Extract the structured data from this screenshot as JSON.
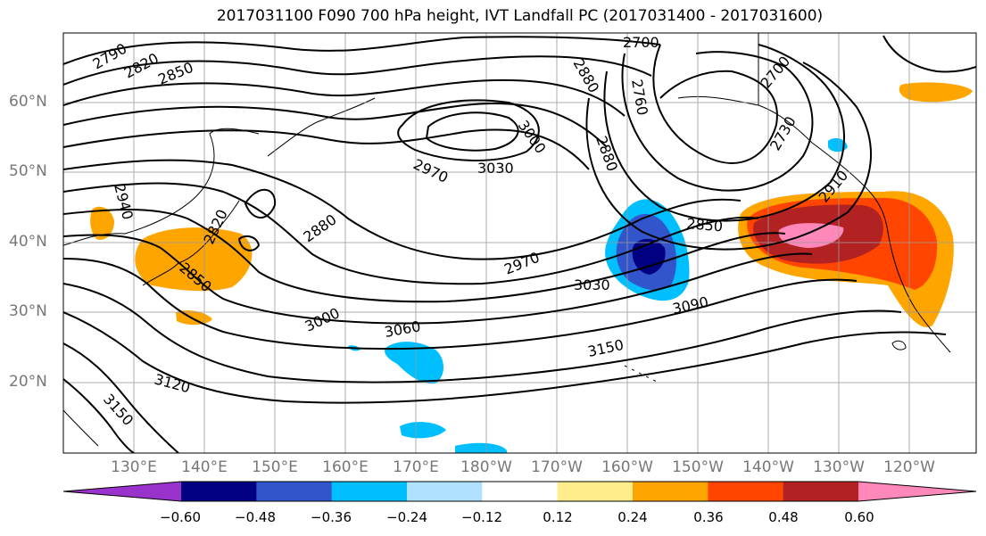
{
  "title": "2017031100 F090 700 hPa height, IVT Landfall PC (2017031400 - 2017031600)",
  "lat_labels": [
    "60°N",
    "50°N",
    "40°N",
    "30°N",
    "20°N"
  ],
  "lon_labels": [
    "130°E",
    "140°E",
    "150°E",
    "160°E",
    "170°E",
    "180°W",
    "170°W",
    "160°W",
    "150°W",
    "140°W",
    "130°W",
    "120°W"
  ],
  "contour_labels": [
    "2790",
    "2820",
    "2850",
    "2700",
    "2880",
    "2970",
    "3000",
    "3030",
    "2760",
    "2880",
    "2700",
    "2730",
    "2910",
    "2940",
    "2820",
    "2850",
    "2880",
    "2970",
    "3030",
    "3090",
    "3000",
    "3060",
    "3150",
    "3120",
    "3150",
    "2850"
  ],
  "colorbar": {
    "ticks": [
      "−0.60",
      "−0.48",
      "−0.36",
      "−0.24",
      "−0.12",
      "0.12",
      "0.24",
      "0.36",
      "0.48",
      "0.60"
    ],
    "colors": [
      "#9933cc",
      "#000080",
      "#3355cc",
      "#00bfff",
      "#b0e2ff",
      "#ffffff",
      "#ffec8b",
      "#ffa500",
      "#ff4500",
      "#b22222",
      "#ff88bb"
    ]
  },
  "colors": {
    "pos_low": "#ffec8b",
    "pos_mid": "#ffa500",
    "pos_high": "#ff4500",
    "pos_max": "#b22222",
    "pos_peak": "#ff88bb",
    "neg_low": "#b0e2ff",
    "neg_mid": "#00bfff",
    "neg_high": "#3355cc",
    "neg_max": "#000080"
  }
}
